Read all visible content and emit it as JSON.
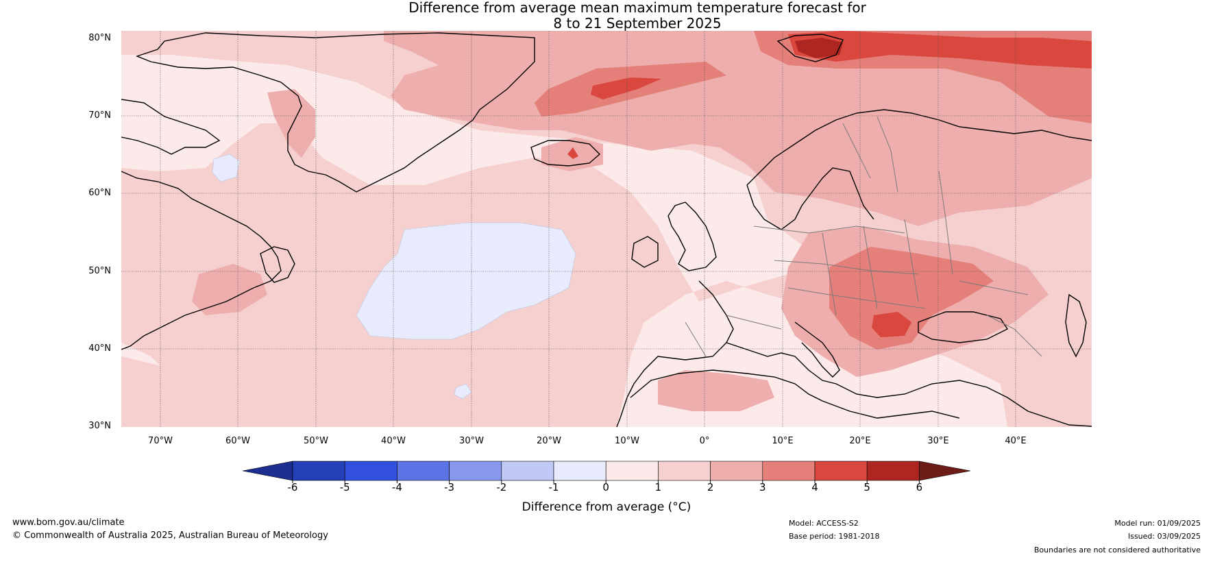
{
  "title": {
    "line1": "Difference from average mean maximum temperature forecast for",
    "line2": "8 to 21 September 2025"
  },
  "map": {
    "lat_labels": [
      "80°N",
      "70°N",
      "60°N",
      "50°N",
      "40°N",
      "30°N"
    ],
    "lon_labels": [
      "70°W",
      "60°W",
      "50°W",
      "40°W",
      "30°W",
      "20°W",
      "10°W",
      "0°",
      "10°E",
      "20°E",
      "30°E",
      "40°E"
    ],
    "region": "North Atlantic and Europe"
  },
  "colorbar": {
    "ticks": [
      "-6",
      "-5",
      "-4",
      "-3",
      "-2",
      "-1",
      "0",
      "1",
      "2",
      "3",
      "4",
      "5",
      "6"
    ],
    "colors": [
      "#1c2e8f",
      "#2440b8",
      "#3250e0",
      "#5d74e6",
      "#8898ee",
      "#c0c8f5",
      "#e8ebfb",
      "#fbeae9",
      "#f5d0cf",
      "#edaead",
      "#e47f79",
      "#d9473f",
      "#ad2621",
      "#6e1c18"
    ],
    "label": "Difference from average (°C)"
  },
  "footer": {
    "url": "www.bom.gov.au/climate",
    "copyright": "© Commonwealth of Australia 2025, Australian Bureau of Meteorology",
    "model": "Model: ACCESS-S2",
    "base_period": "Base period: 1981-2018",
    "model_run": "Model run: 01/09/2025",
    "issued": "Issued: 03/09/2025",
    "disclaimer": "Boundaries are not considered authoritative"
  }
}
